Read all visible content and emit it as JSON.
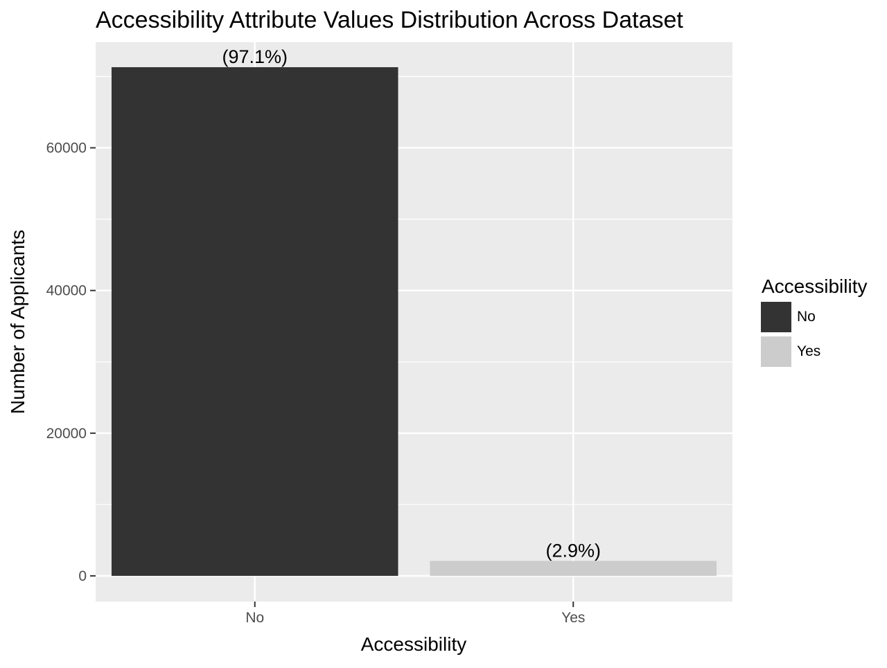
{
  "chart_data": {
    "type": "bar",
    "title": "Accessibility Attribute Values Distribution Across Dataset",
    "xlabel": "Accessibility",
    "ylabel": "Number of Applicants",
    "categories": [
      "No",
      "Yes"
    ],
    "values": [
      71300,
      2100
    ],
    "value_labels": [
      "(97.1%)",
      "(2.9%)"
    ],
    "ylim": [
      -3600,
      74800
    ],
    "yticks": [
      0,
      20000,
      40000,
      60000
    ],
    "ytick_labels": [
      "0",
      "20000",
      "40000",
      "60000"
    ],
    "grid": true,
    "legend": {
      "title": "Accessibility",
      "placement": "right",
      "items": [
        {
          "label": "No",
          "color": "#333333"
        },
        {
          "label": "Yes",
          "color": "#cccccc"
        }
      ]
    },
    "colors": {
      "panel_background": "#ebebeb",
      "gridline": "#ffffff",
      "bar_no": "#333333",
      "bar_yes": "#cccccc"
    }
  }
}
